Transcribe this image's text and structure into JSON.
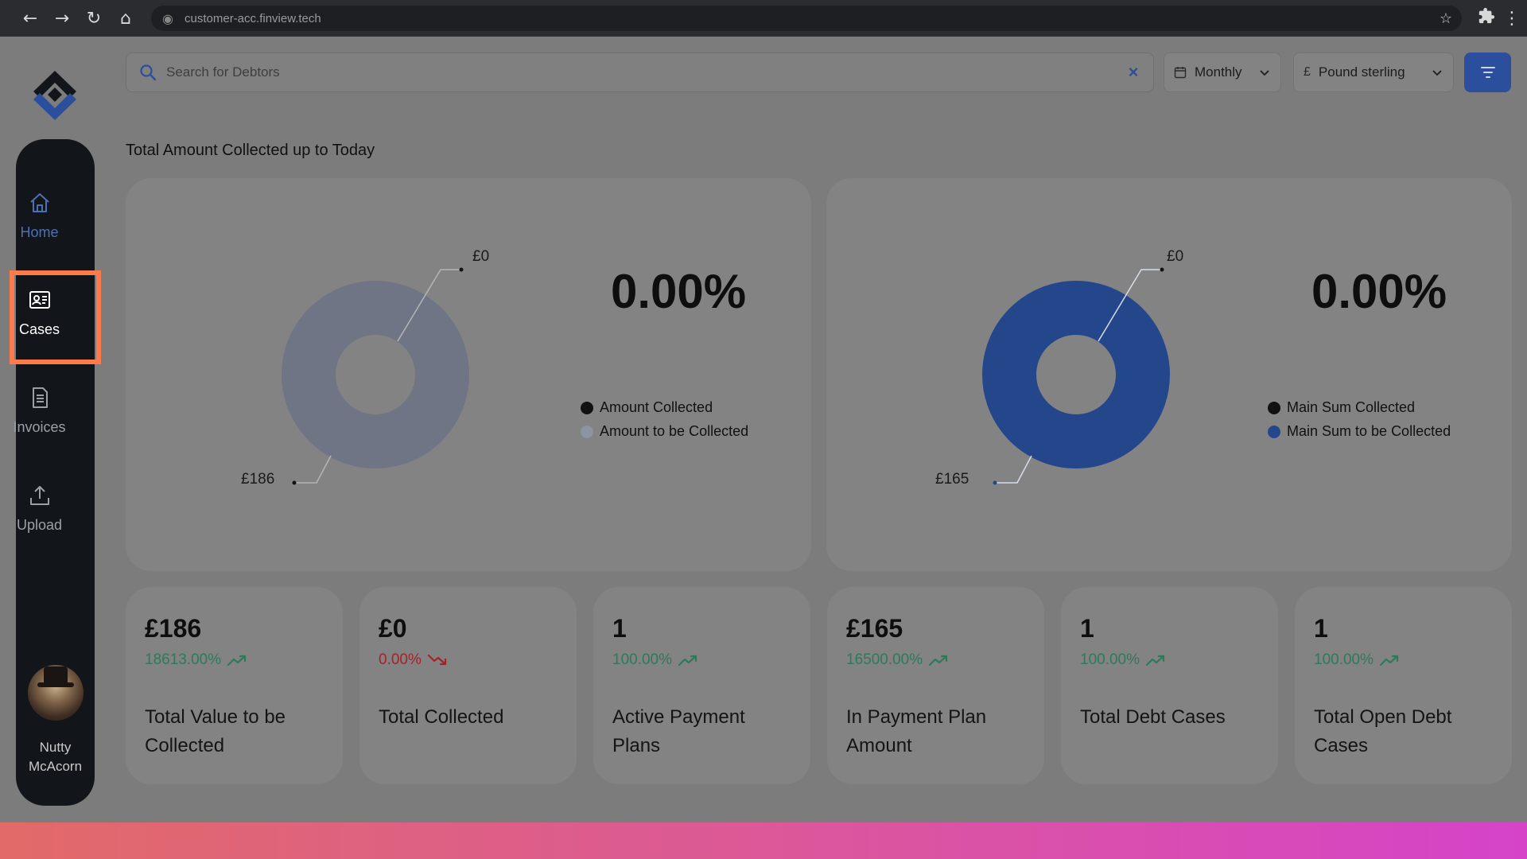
{
  "browser": {
    "url": "customer-acc.finview.tech",
    "icons": [
      "back-icon",
      "forward-icon",
      "reload-icon",
      "home-icon",
      "site-info-icon",
      "bookmark-star-icon",
      "extensions-icon",
      "menu-dots-icon"
    ]
  },
  "sidebar": {
    "items": [
      {
        "label": "Home",
        "icon": "home-icon",
        "active": false
      },
      {
        "label": "Cases",
        "icon": "id-card-icon",
        "active": true
      },
      {
        "label": "Invoices",
        "icon": "document-icon",
        "active": false
      },
      {
        "label": "Upload",
        "icon": "upload-icon",
        "active": false
      }
    ],
    "user": {
      "first": "Nutty",
      "last": "McAcorn"
    }
  },
  "header": {
    "search_placeholder": "Search for Debtors",
    "period_label": "Monthly",
    "currency_symbol": "£",
    "currency_label": "Pound sterling"
  },
  "section_title": "Total Amount Collected up to Today",
  "colors": {
    "accent": "#2b4f9c",
    "donut_gray": "#6f7585",
    "donut_blue": "#24478c",
    "legend_dark": "#111111",
    "legend_light_gray": "#8d93a0",
    "up_green": "#2d7a5a",
    "down_red": "#a3232a",
    "annotation_orange": "#ff7a4b"
  },
  "chart_data": [
    {
      "type": "pie",
      "donut": true,
      "percent": "0.00%",
      "series": [
        {
          "name": "Amount Collected",
          "value": 0,
          "label": "£0"
        },
        {
          "name": "Amount to be Collected",
          "value": 186,
          "label": "£186"
        }
      ]
    },
    {
      "type": "pie",
      "donut": true,
      "percent": "0.00%",
      "series": [
        {
          "name": "Main Sum Collected",
          "value": 0,
          "label": "£0"
        },
        {
          "name": "Main Sum to be Collected",
          "value": 165,
          "label": "£165"
        }
      ]
    }
  ],
  "stats": [
    {
      "value": "£186",
      "change": "18613.00%",
      "trend": "up",
      "label": "Total Value to be Collected"
    },
    {
      "value": "£0",
      "change": "0.00%",
      "trend": "down",
      "label": "Total Collected"
    },
    {
      "value": "1",
      "change": "100.00%",
      "trend": "up",
      "label": "Active Payment Plans"
    },
    {
      "value": "£165",
      "change": "16500.00%",
      "trend": "up",
      "label": "In Payment Plan Amount"
    },
    {
      "value": "1",
      "change": "100.00%",
      "trend": "up",
      "label": "Total Debt Cases"
    },
    {
      "value": "1",
      "change": "100.00%",
      "trend": "up",
      "label": "Total Open Debt Cases"
    }
  ]
}
